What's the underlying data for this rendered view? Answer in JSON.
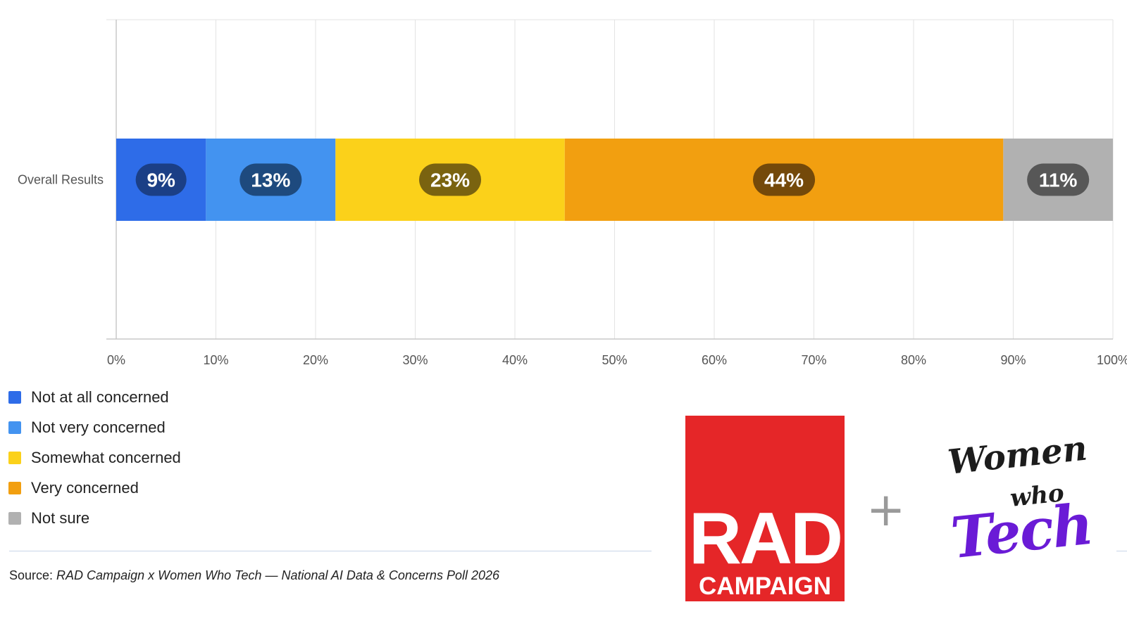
{
  "chart_data": {
    "type": "bar",
    "orientation": "horizontal",
    "stacked": true,
    "categories": [
      "Overall Results"
    ],
    "series": [
      {
        "name": "Not at all concerned",
        "values": [
          9
        ],
        "label": "9%",
        "color": "#2e6ce8",
        "label_bg": "#1b3f86"
      },
      {
        "name": "Not very concerned",
        "values": [
          13
        ],
        "label": "13%",
        "color": "#4393f0",
        "label_bg": "#1e4a7e"
      },
      {
        "name": "Somewhat concerned",
        "values": [
          23
        ],
        "label": "23%",
        "color": "#fbd11a",
        "label_bg": "#7a6310"
      },
      {
        "name": "Very concerned",
        "values": [
          44
        ],
        "label": "44%",
        "color": "#f29f10",
        "label_bg": "#74490a"
      },
      {
        "name": "Not sure",
        "values": [
          11
        ],
        "label": "11%",
        "color": "#b1b1b1",
        "label_bg": "#575757"
      }
    ],
    "xlim": [
      0,
      100
    ],
    "xticks": [
      "0%",
      "10%",
      "20%",
      "30%",
      "40%",
      "50%",
      "60%",
      "70%",
      "80%",
      "90%",
      "100%"
    ],
    "xlabel": "",
    "ylabel": "",
    "title": "",
    "grid": true,
    "legend": "bottom-left"
  },
  "footer": {
    "source_prefix": "Source: ",
    "source_text": "RAD Campaign x Women Who Tech — National AI Data & Concerns Poll 2026"
  },
  "logos": {
    "rad": {
      "line1": "RAD",
      "line2": "CAMPAIGN",
      "color": "#e52628"
    },
    "plus": "+",
    "wwt": {
      "line1": "Women",
      "line2": "who",
      "line3": "Tech",
      "accent": "#6a1bd6"
    }
  }
}
